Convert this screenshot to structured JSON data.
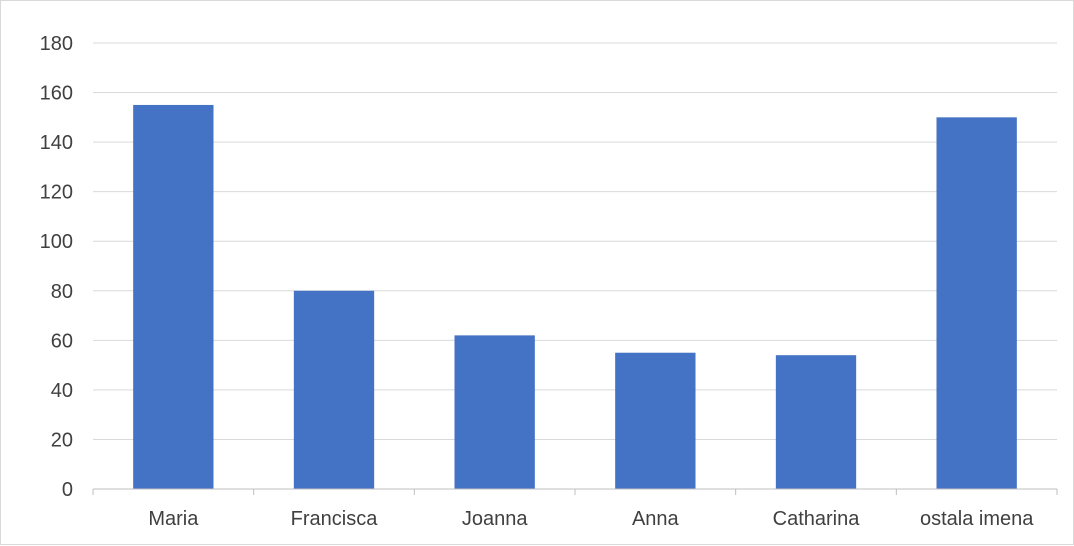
{
  "chart_data": {
    "type": "bar",
    "categories": [
      "Maria",
      "Francisca",
      "Joanna",
      "Anna",
      "Catharina",
      "ostala imena"
    ],
    "values": [
      155,
      80,
      62,
      55,
      54,
      150
    ],
    "title": "",
    "xlabel": "",
    "ylabel": "",
    "ylim": [
      0,
      180
    ],
    "yticks": [
      "0",
      "20",
      "40",
      "60",
      "80",
      "100",
      "120",
      "140",
      "160",
      "180"
    ],
    "grid": true,
    "legend": "none",
    "colors": {
      "bar": "#4472C4",
      "grid": "#d9d9d9",
      "axis": "#bfbfbf"
    }
  }
}
